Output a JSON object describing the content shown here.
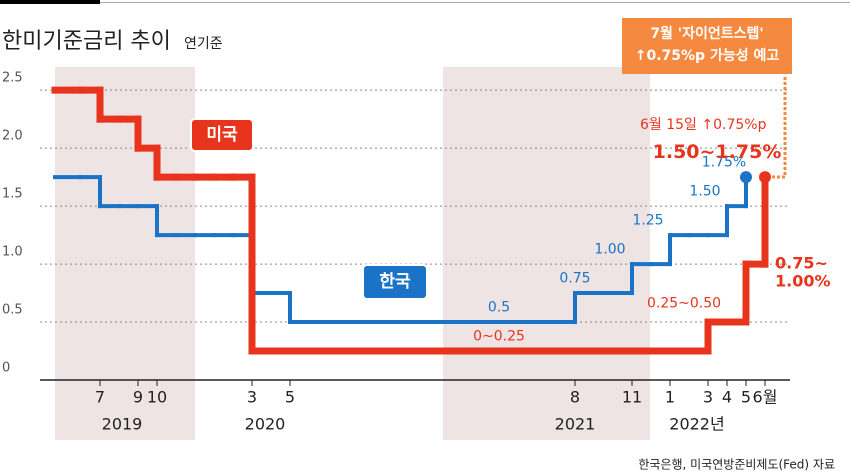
{
  "chart_data": {
    "type": "step",
    "title": "한미기준금리 추이",
    "subtitle": "연기준",
    "categories": [
      null,
      null,
      "7",
      null,
      "9",
      "10",
      null,
      null,
      null,
      null,
      "3",
      null,
      "5",
      null,
      null,
      null,
      null,
      null,
      null,
      null,
      null,
      null,
      null,
      null,
      null,
      null,
      null,
      "8",
      null,
      null,
      "11",
      null,
      "1",
      null,
      "3",
      "4",
      "5",
      "6월"
    ],
    "year_labels": [
      "2019",
      "2020",
      "2021",
      "2022년"
    ],
    "series": [
      {
        "name": "한국",
        "color": "#1a73c7",
        "values": [
          1.75,
          1.75,
          1.5,
          1.5,
          1.5,
          1.25,
          1.25,
          1.25,
          1.25,
          1.25,
          0.75,
          0.75,
          0.5,
          0.5,
          0.5,
          0.5,
          0.5,
          0.5,
          0.5,
          0.5,
          0.5,
          0.5,
          0.5,
          0.5,
          0.5,
          0.5,
          0.5,
          0.75,
          0.75,
          0.75,
          1.0,
          1.0,
          1.25,
          1.25,
          1.25,
          1.5,
          1.75,
          null
        ],
        "value_labels": [
          null,
          null,
          null,
          null,
          null,
          null,
          null,
          null,
          null,
          null,
          null,
          null,
          null,
          null,
          null,
          null,
          null,
          null,
          null,
          null,
          null,
          null,
          null,
          "0.5",
          null,
          null,
          null,
          "0.75",
          null,
          null,
          "1.00",
          null,
          "1.25",
          null,
          null,
          "1.50",
          "1.75%",
          null
        ]
      },
      {
        "name": "미국",
        "color": "#e8341c",
        "values": [
          2.5,
          2.5,
          2.25,
          2.25,
          2.0,
          1.75,
          1.75,
          1.75,
          1.75,
          1.75,
          0.25,
          0.25,
          0.25,
          0.25,
          0.25,
          0.25,
          0.25,
          0.25,
          0.25,
          0.25,
          0.25,
          0.25,
          0.25,
          0.25,
          0.25,
          0.25,
          0.25,
          0.25,
          0.25,
          0.25,
          0.25,
          0.25,
          0.25,
          0.25,
          0.5,
          0.5,
          1.0,
          1.75
        ],
        "value_labels": [
          null,
          null,
          null,
          null,
          null,
          null,
          null,
          null,
          null,
          null,
          null,
          null,
          null,
          null,
          null,
          null,
          null,
          null,
          null,
          null,
          null,
          null,
          null,
          "0~0.25",
          null,
          null,
          null,
          null,
          null,
          null,
          null,
          null,
          null,
          null,
          "0.25~0.50",
          null,
          "0.75~\n1.00%",
          "1.50~1.75%"
        ]
      }
    ],
    "ylim": [
      0,
      2.7
    ],
    "yticks": [
      0,
      0.5,
      {
        "value": 1,
        "label": "1.0"
      },
      1.5,
      {
        "value": 2,
        "label": "2.0"
      },
      2.5
    ],
    "grid": true,
    "annotations": [
      "6월 15일 ↑0.75%p"
    ],
    "callout": [
      "7월 '자이언트스텝'",
      "↑0.75%p 가능성 예고"
    ],
    "source": "한국은행, 미국연방준비제도(Fed) 자료"
  }
}
